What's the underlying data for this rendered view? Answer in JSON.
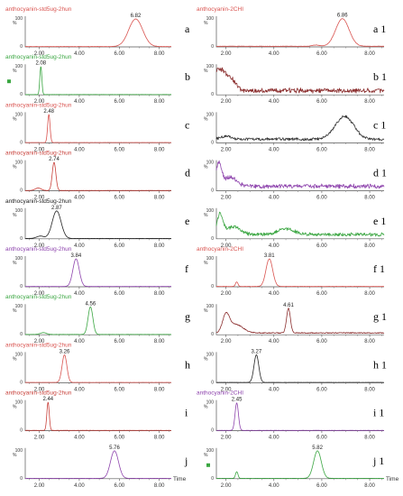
{
  "chart_data": {
    "type": "line",
    "x_label": "Time",
    "x_ticks": [
      2,
      4,
      6,
      8
    ],
    "x_tick_labels": [
      "2.00",
      "4.00",
      "6.00",
      "8.00"
    ],
    "y_ticks": [
      0,
      100
    ],
    "y_tick_labels": [
      "0",
      "100"
    ],
    "y_unit": "%",
    "columns": [
      {
        "xlim": [
          1.3,
          8.6
        ],
        "panels": [
          {
            "letter": "a",
            "title": "anthocyanin-std5ug-2hun",
            "color": "#d9534f",
            "marker": false,
            "peaks": [
              {
                "rt": 6.82,
                "label": "6.82",
                "height": 90,
                "width": 0.35
              }
            ],
            "noise": 0.5,
            "baseline": 1
          },
          {
            "letter": "b",
            "title": "anthocyanin-std5ug-2hun",
            "color": "#3aa641",
            "marker": true,
            "peaks": [
              {
                "rt": 2.08,
                "label": "2.08",
                "height": 92,
                "width": 0.05
              }
            ],
            "noise": 0.3,
            "baseline": 1
          },
          {
            "letter": "c",
            "title": "anthocyanin-std5ug-2hun",
            "color": "#d9534f",
            "marker": false,
            "peaks": [
              {
                "rt": 2.48,
                "label": "2.48",
                "height": 92,
                "width": 0.06
              }
            ],
            "noise": 0.3,
            "baseline": 1
          },
          {
            "letter": "d",
            "title": "anthocyanin-std5ug-2hun",
            "color": "#c8413b",
            "marker": false,
            "peaks": [
              {
                "rt": 2.74,
                "label": "2.74",
                "height": 92,
                "width": 0.09
              },
              {
                "rt": 1.95,
                "label": "",
                "height": 8,
                "width": 0.15
              }
            ],
            "noise": 0.4,
            "baseline": 1
          },
          {
            "letter": "e",
            "title": "anthocyanin-std5ug-2hun",
            "color": "#222222",
            "marker": false,
            "peaks": [
              {
                "rt": 2.87,
                "label": "2.87",
                "height": 90,
                "width": 0.22
              },
              {
                "rt": 2.05,
                "label": "",
                "height": 8,
                "width": 0.18
              }
            ],
            "noise": 0.4,
            "baseline": 1
          },
          {
            "letter": "f",
            "title": "anthocyanin-std5ug-2hun",
            "color": "#8e44ad",
            "marker": false,
            "peaks": [
              {
                "rt": 3.84,
                "label": "3.84",
                "height": 90,
                "width": 0.16
              }
            ],
            "noise": 0.3,
            "baseline": 1
          },
          {
            "letter": "g",
            "title": "anthocyanin-std5ug-2hun",
            "color": "#3aa641",
            "marker": false,
            "peaks": [
              {
                "rt": 4.56,
                "label": "4.56",
                "height": 90,
                "width": 0.12
              },
              {
                "rt": 2.2,
                "label": "",
                "height": 6,
                "width": 0.15
              }
            ],
            "noise": 0.4,
            "baseline": 1
          },
          {
            "letter": "h",
            "title": "anthocyanin-std5ug-2hun",
            "color": "#d9534f",
            "marker": false,
            "peaks": [
              {
                "rt": 3.26,
                "label": "3.26",
                "height": 90,
                "width": 0.12
              }
            ],
            "noise": 0.3,
            "baseline": 1
          },
          {
            "letter": "i",
            "title": "anthocyanin-std5ug-2hun",
            "color": "#c8413b",
            "marker": false,
            "peaks": [
              {
                "rt": 2.44,
                "label": "2.44",
                "height": 92,
                "width": 0.06
              }
            ],
            "noise": 0.3,
            "baseline": 1
          },
          {
            "letter": "j",
            "title": "",
            "color": "#8e44ad",
            "marker": false,
            "peaks": [
              {
                "rt": 5.76,
                "label": "5.76",
                "height": 90,
                "width": 0.2
              }
            ],
            "noise": 0.3,
            "baseline": 1
          }
        ]
      },
      {
        "xlim": [
          1.6,
          8.6
        ],
        "panels": [
          {
            "letter": "a 1",
            "title": "anthocyanin-2CHI",
            "color": "#d9534f",
            "marker": false,
            "peaks": [
              {
                "rt": 6.86,
                "label": "6.86",
                "height": 90,
                "width": 0.28
              },
              {
                "rt": 5.75,
                "label": "",
                "height": 4,
                "width": 0.15
              }
            ],
            "noise": 0.6,
            "baseline": 2
          },
          {
            "letter": "b 1",
            "title": "",
            "color": "#8b2e2e",
            "marker": false,
            "peaks": [
              {
                "rt": 1.7,
                "label": "",
                "height": 70,
                "width": 0.25
              },
              {
                "rt": 2.2,
                "label": "",
                "height": 35,
                "width": 0.2
              }
            ],
            "noise": 7,
            "baseline": 14
          },
          {
            "letter": "c 1",
            "title": "",
            "color": "#333333",
            "marker": false,
            "peaks": [
              {
                "rt": 6.95,
                "label": "",
                "height": 75,
                "width": 0.38
              },
              {
                "rt": 2.0,
                "label": "",
                "height": 10,
                "width": 0.2
              }
            ],
            "noise": 4,
            "baseline": 12
          },
          {
            "letter": "d 1",
            "title": "",
            "color": "#8e44ad",
            "marker": false,
            "peaks": [
              {
                "rt": 1.7,
                "label": "",
                "height": 75,
                "width": 0.12
              },
              {
                "rt": 2.2,
                "label": "",
                "height": 30,
                "width": 0.25
              }
            ],
            "noise": 6,
            "baseline": 15
          },
          {
            "letter": "e 1",
            "title": "",
            "color": "#3aa641",
            "marker": false,
            "peaks": [
              {
                "rt": 1.75,
                "label": "",
                "height": 65,
                "width": 0.12
              },
              {
                "rt": 2.3,
                "label": "",
                "height": 25,
                "width": 0.3
              },
              {
                "rt": 4.5,
                "label": "",
                "height": 18,
                "width": 0.35
              }
            ],
            "noise": 5,
            "baseline": 14
          },
          {
            "letter": "f 1",
            "title": "anthocyanin-2CHI",
            "color": "#d9534f",
            "marker": false,
            "peaks": [
              {
                "rt": 3.81,
                "label": "3.81",
                "height": 90,
                "width": 0.14
              },
              {
                "rt": 2.45,
                "label": "",
                "height": 15,
                "width": 0.05
              }
            ],
            "noise": 0.5,
            "baseline": 1
          },
          {
            "letter": "g 1",
            "title": "",
            "color": "#8b2e2e",
            "marker": false,
            "peaks": [
              {
                "rt": 4.61,
                "label": "4.61",
                "height": 80,
                "width": 0.08
              },
              {
                "rt": 2.0,
                "label": "",
                "height": 55,
                "width": 0.14
              },
              {
                "rt": 2.4,
                "label": "",
                "height": 28,
                "width": 0.3
              }
            ],
            "noise": 1.5,
            "baseline": 6
          },
          {
            "letter": "h 1",
            "title": "",
            "color": "#222222",
            "marker": false,
            "peaks": [
              {
                "rt": 3.27,
                "label": "3.27",
                "height": 90,
                "width": 0.1
              }
            ],
            "noise": 0.3,
            "baseline": 1
          },
          {
            "letter": "i 1",
            "title": "anthocyanin-2CHI",
            "color": "#8e44ad",
            "marker": false,
            "peaks": [
              {
                "rt": 2.45,
                "label": "2.45",
                "height": 90,
                "width": 0.07
              }
            ],
            "noise": 0.3,
            "baseline": 1
          },
          {
            "letter": "j 1",
            "title": "",
            "color": "#3aa641",
            "marker": true,
            "peaks": [
              {
                "rt": 5.82,
                "label": "5.82",
                "height": 90,
                "width": 0.16
              },
              {
                "rt": 2.45,
                "label": "",
                "height": 22,
                "width": 0.05
              }
            ],
            "noise": 0.3,
            "baseline": 1
          }
        ]
      }
    ]
  }
}
